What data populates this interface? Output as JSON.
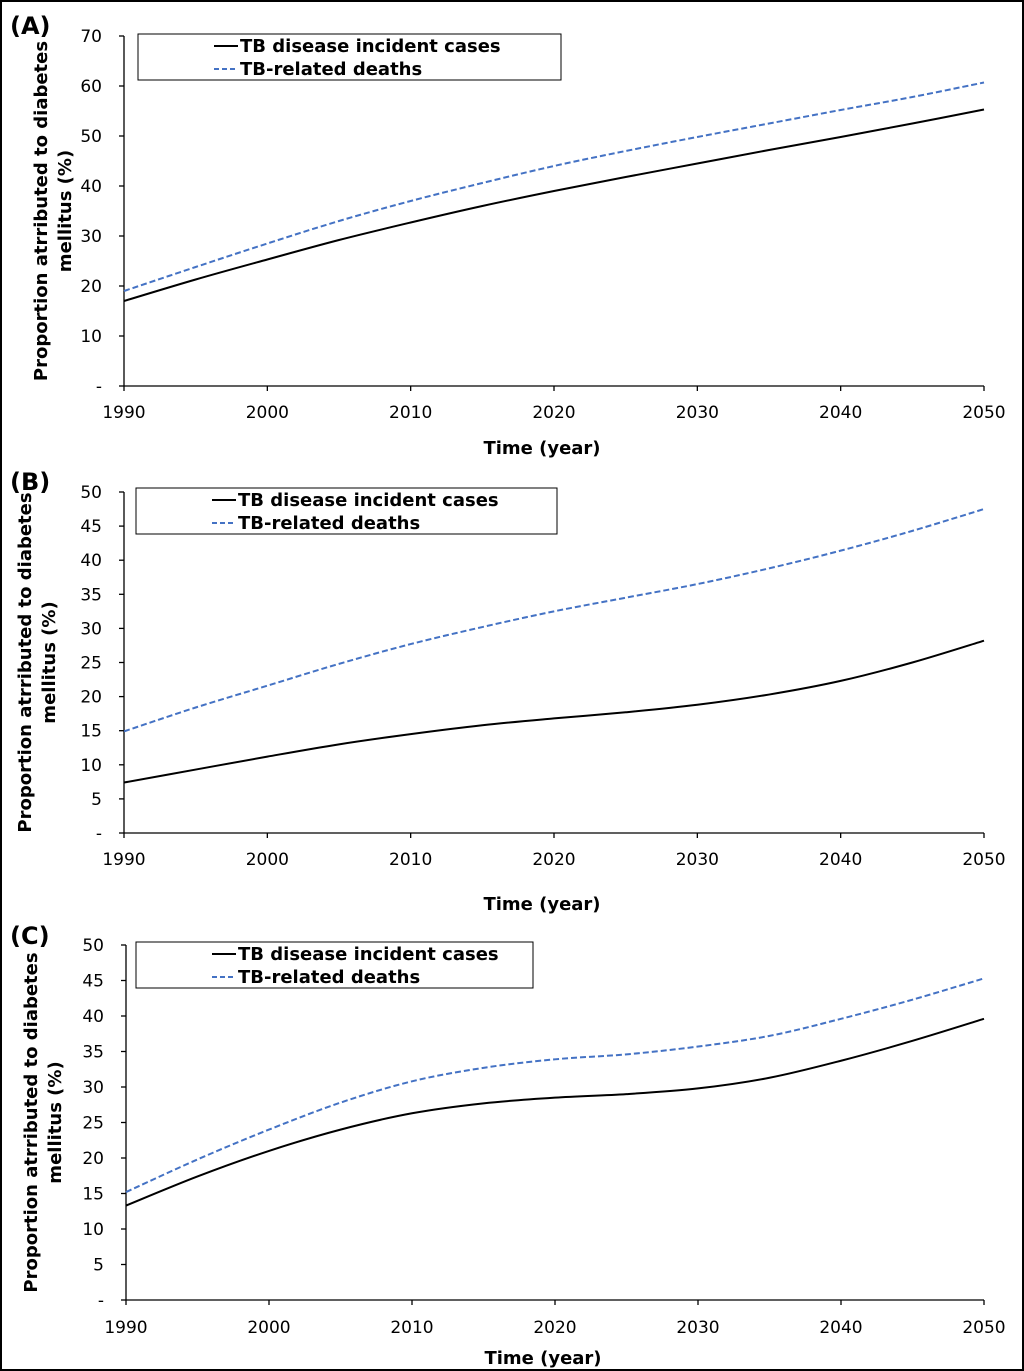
{
  "chart_data": [
    {
      "type": "line",
      "panel_label": "(A)",
      "xlabel": "Time (year)",
      "ylabel_lines": [
        "Proportion atrributed to diabetes",
        "mellitus (%)"
      ],
      "xlim": [
        1990,
        2050
      ],
      "ylim": [
        0,
        70
      ],
      "x_ticks": [
        1990,
        2000,
        2010,
        2020,
        2030,
        2040,
        2050
      ],
      "y_ticks": [
        "-",
        "10",
        "20",
        "30",
        "40",
        "50",
        "60",
        "70"
      ],
      "legend": [
        "TB disease incident cases",
        "TB-related deaths"
      ],
      "series": [
        {
          "name": "TB disease incident cases",
          "style": "solid",
          "color": "#000000",
          "x": [
            1990,
            1995,
            2000,
            2005,
            2010,
            2015,
            2020,
            2025,
            2030,
            2035,
            2040,
            2045,
            2050
          ],
          "values": [
            17.0,
            21.3,
            25.3,
            29.2,
            32.7,
            36.0,
            39.0,
            41.8,
            44.5,
            47.2,
            49.8,
            52.5,
            55.3
          ]
        },
        {
          "name": "TB-related deaths",
          "style": "dashed",
          "color": "#4472C4",
          "x": [
            1990,
            1995,
            2000,
            2005,
            2010,
            2015,
            2020,
            2025,
            2030,
            2035,
            2040,
            2045,
            2050
          ],
          "values": [
            19.0,
            23.8,
            28.5,
            33.0,
            37.0,
            40.6,
            44.0,
            47.0,
            49.8,
            52.5,
            55.2,
            57.8,
            60.7
          ]
        }
      ]
    },
    {
      "type": "line",
      "panel_label": "(B)",
      "xlabel": "Time (year)",
      "ylabel_lines": [
        "Proportion atrributed to diabetes",
        "mellitus (%)"
      ],
      "xlim": [
        1990,
        2050
      ],
      "ylim": [
        0,
        50
      ],
      "x_ticks": [
        1990,
        2000,
        2010,
        2020,
        2030,
        2040,
        2050
      ],
      "y_ticks": [
        "-",
        "5",
        "10",
        "15",
        "20",
        "25",
        "30",
        "35",
        "40",
        "45",
        "50"
      ],
      "legend": [
        "TB disease incident cases",
        "TB-related deaths"
      ],
      "series": [
        {
          "name": "TB disease incident cases",
          "style": "solid",
          "color": "#000000",
          "x": [
            1990,
            1995,
            2000,
            2005,
            2010,
            2015,
            2020,
            2025,
            2030,
            2035,
            2040,
            2045,
            2050
          ],
          "values": [
            7.4,
            9.3,
            11.2,
            13.0,
            14.5,
            15.8,
            16.8,
            17.7,
            18.8,
            20.3,
            22.3,
            25.0,
            28.2
          ]
        },
        {
          "name": "TB-related deaths",
          "style": "dashed",
          "color": "#4472C4",
          "x": [
            1990,
            1995,
            2000,
            2005,
            2010,
            2015,
            2020,
            2025,
            2030,
            2035,
            2040,
            2045,
            2050
          ],
          "values": [
            14.9,
            18.4,
            21.6,
            24.8,
            27.7,
            30.2,
            32.5,
            34.5,
            36.5,
            38.8,
            41.4,
            44.3,
            47.5
          ]
        }
      ]
    },
    {
      "type": "line",
      "panel_label": "(C)",
      "xlabel": "Time (year)",
      "ylabel_lines": [
        "Proportion atrributed to diabetes",
        "mellitus (%)"
      ],
      "xlim": [
        1990,
        2050
      ],
      "ylim": [
        0,
        50
      ],
      "x_ticks": [
        1990,
        2000,
        2010,
        2020,
        2030,
        2040,
        2050
      ],
      "y_ticks": [
        "-",
        "5",
        "10",
        "15",
        "20",
        "25",
        "30",
        "35",
        "40",
        "45",
        "50"
      ],
      "legend": [
        "TB disease incident cases",
        "TB-related deaths"
      ],
      "series": [
        {
          "name": "TB disease incident cases",
          "style": "solid",
          "color": "#000000",
          "x": [
            1990,
            1995,
            2000,
            2005,
            2010,
            2015,
            2020,
            2025,
            2030,
            2035,
            2040,
            2045,
            2050
          ],
          "values": [
            13.3,
            17.4,
            21.0,
            24.0,
            26.3,
            27.7,
            28.5,
            29.0,
            29.8,
            31.3,
            33.7,
            36.5,
            39.6
          ]
        },
        {
          "name": "TB-related deaths",
          "style": "dashed",
          "color": "#4472C4",
          "x": [
            1990,
            1995,
            2000,
            2005,
            2010,
            2015,
            2020,
            2025,
            2030,
            2035,
            2040,
            2045,
            2050
          ],
          "values": [
            15.2,
            19.8,
            24.0,
            27.8,
            30.8,
            32.7,
            33.9,
            34.6,
            35.7,
            37.2,
            39.6,
            42.3,
            45.3
          ]
        }
      ]
    }
  ]
}
